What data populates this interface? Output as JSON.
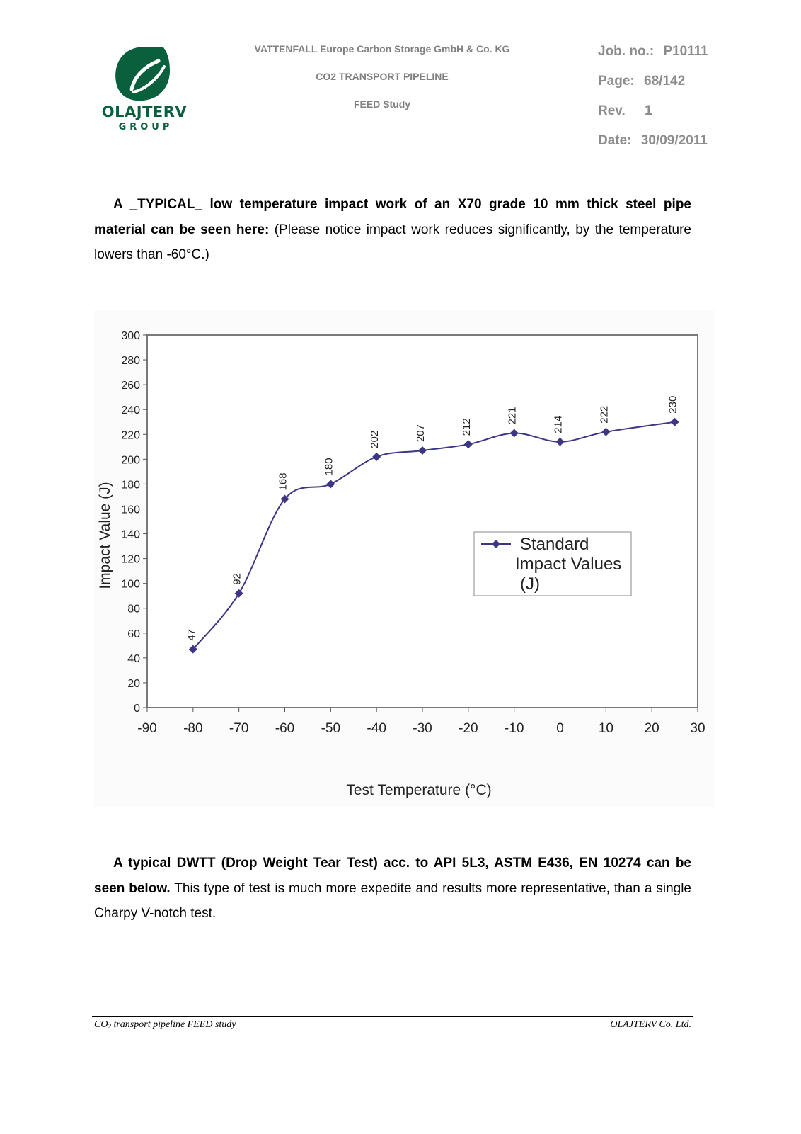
{
  "header": {
    "logo": {
      "name": "OLAJTERV",
      "sub": "GROUP",
      "icon": "olajterv-leaf-logo",
      "color": "#0a5f3c"
    },
    "company": "VATTENFALL Europe Carbon Storage GmbH & Co. KG",
    "project": "CO2 TRANSPORT PIPELINE",
    "study": "FEED Study",
    "job_label": "Job. no.:",
    "job_value": "P10111",
    "page_label": "Page:",
    "page_value": "68/142",
    "rev_label": "Rev.",
    "rev_value": "1",
    "date_label": "Date:",
    "date_value": "30/09/2011"
  },
  "paragraph1": {
    "bold": "A _TYPICAL_ low temperature impact work of an X70 grade 10 mm thick steel pipe material can be seen here:",
    "normal": " (Please notice impact work reduces significantly, by the temperature lowers than -60°C.)"
  },
  "paragraph2": {
    "bold": "A typical DWTT (Drop Weight Tear Test) acc. to API 5L3, ASTM E436, EN 10274 can be seen below.",
    "normal": " This type of test is much more expedite and results more representative, than a single Charpy V-notch test."
  },
  "chart_data": {
    "type": "line",
    "title": "",
    "xlabel": "Test Temperature (°C)",
    "ylabel": "Impact Value (J)",
    "xlim": [
      -90,
      30
    ],
    "ylim": [
      0,
      300
    ],
    "xticks": [
      "-90",
      "-80",
      "-70",
      "-60",
      "-50",
      "-40",
      "-30",
      "-20",
      "-10",
      "0",
      "10",
      "20",
      "30"
    ],
    "yticks": [
      "0",
      "20",
      "40",
      "60",
      "80",
      "100",
      "120",
      "140",
      "160",
      "180",
      "200",
      "220",
      "240",
      "260",
      "280",
      "300"
    ],
    "grid": false,
    "legend_position": "right-middle",
    "legend_lines": [
      "Standard",
      "Impact Values",
      "(J)"
    ],
    "series": [
      {
        "name": "Standard Impact Values (J)",
        "color": "#3d3585",
        "marker": "diamond",
        "x": [
          -80,
          -70,
          -60,
          -50,
          -40,
          -30,
          -20,
          -10,
          0,
          10,
          25
        ],
        "y": [
          47,
          92,
          168,
          180,
          202,
          207,
          212,
          221,
          214,
          222,
          230
        ],
        "labels": [
          "47",
          "92",
          "168",
          "180",
          "202",
          "207",
          "212",
          "221",
          "214",
          "222",
          "230"
        ]
      }
    ]
  },
  "footer": {
    "left_prefix": "CO",
    "left_sub": "2",
    "left_suffix": " transport pipeline FEED study",
    "right": "OLAJTERV Co. Ltd."
  }
}
